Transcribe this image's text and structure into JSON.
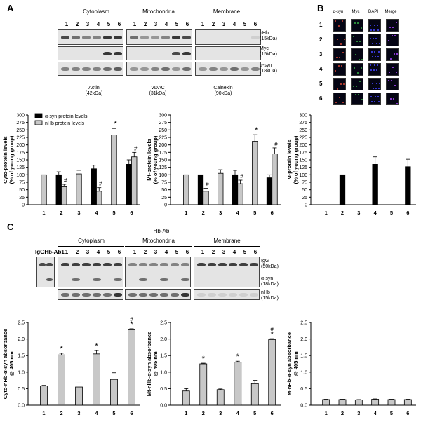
{
  "panelA": {
    "label": "A",
    "compartments": [
      "Cytoplasm",
      "Mitochondria",
      "Membrane"
    ],
    "lanes": [
      "1",
      "2",
      "3",
      "4",
      "5",
      "6"
    ],
    "band_labels": [
      "nHb\n(15kDa)",
      "Myc\n(15kDa)",
      "α-syn\n(18kDa)"
    ],
    "loading_controls": [
      "Actin\n(42kDa)",
      "VDAC\n(31kDa)",
      "Calnexin\n(90kDa)"
    ]
  },
  "panelB": {
    "label": "B",
    "columns": [
      "α-syn",
      "Myc",
      "DAPI",
      "Merge"
    ],
    "rows": [
      "1",
      "2",
      "3",
      "4",
      "5",
      "6"
    ]
  },
  "panelC": {
    "label": "C",
    "title": "Hb-Ab",
    "compartments": [
      "Cytoplasm",
      "Mitochondria",
      "Membrane"
    ],
    "lanes": [
      "1",
      "2",
      "3",
      "4",
      "5",
      "6"
    ],
    "side_lanes": "IgGHb-Ab1",
    "band_labels": [
      "IgG\n(50kDa)",
      "α-syn\n(18kDa)",
      "nHb\n(15kDa)"
    ]
  },
  "chart_data": [
    {
      "type": "bar",
      "id": "A1",
      "ylabel": "Cyto-protein levels\n(% of young group)",
      "ylim": [
        0,
        300
      ],
      "yticks": [
        0,
        25,
        50,
        75,
        100,
        125,
        150,
        175,
        200,
        225,
        250,
        275,
        300
      ],
      "categories": [
        "1",
        "2",
        "3",
        "4",
        "5",
        "6"
      ],
      "legend": [
        "α-syn protein levels",
        "nHb protein levels"
      ],
      "series": [
        {
          "name": "α-syn protein levels",
          "color": "#000000",
          "values": [
            null,
            100,
            null,
            120,
            null,
            135
          ],
          "err": [
            0,
            10,
            0,
            12,
            0,
            15
          ]
        },
        {
          "name": "nHb protein levels",
          "color": "#c8c8c8",
          "values": [
            100,
            60,
            103,
            45,
            233,
            160
          ],
          "err": [
            0,
            8,
            12,
            12,
            22,
            15
          ]
        }
      ],
      "annotations": [
        {
          "cat": 1,
          "series": 1,
          "text": "#"
        },
        {
          "cat": 3,
          "series": 1,
          "text": "#"
        },
        {
          "cat": 4,
          "series": 1,
          "text": "*"
        },
        {
          "cat": 5,
          "series": 1,
          "text": "#"
        }
      ]
    },
    {
      "type": "bar",
      "id": "A2",
      "ylabel": "Mt-protein levels\n(% of young group)",
      "ylim": [
        0,
        300
      ],
      "yticks": [
        0,
        25,
        50,
        75,
        100,
        125,
        150,
        175,
        200,
        225,
        250,
        275,
        300
      ],
      "categories": [
        "1",
        "2",
        "3",
        "4",
        "5",
        "6"
      ],
      "series": [
        {
          "name": "α-syn",
          "color": "#000000",
          "values": [
            null,
            100,
            null,
            100,
            null,
            90
          ],
          "err": [
            0,
            0,
            0,
            15,
            0,
            10
          ]
        },
        {
          "name": "nHb",
          "color": "#c8c8c8",
          "values": [
            100,
            45,
            105,
            70,
            212,
            170
          ],
          "err": [
            0,
            10,
            12,
            12,
            22,
            20
          ]
        }
      ],
      "annotations": [
        {
          "cat": 1,
          "series": 1,
          "text": "#"
        },
        {
          "cat": 3,
          "series": 1,
          "text": "#"
        },
        {
          "cat": 4,
          "series": 1,
          "text": "*"
        },
        {
          "cat": 5,
          "series": 1,
          "text": "#"
        }
      ]
    },
    {
      "type": "bar",
      "id": "A3",
      "ylabel": "M-protein levels\n(% of young group)",
      "ylim": [
        0,
        300
      ],
      "yticks": [
        0,
        25,
        50,
        75,
        100,
        125,
        150,
        175,
        200,
        225,
        250,
        275,
        300
      ],
      "categories": [
        "1",
        "2",
        "3",
        "4",
        "5",
        "6"
      ],
      "series": [
        {
          "name": "α-syn",
          "color": "#000000",
          "values": [
            null,
            100,
            null,
            135,
            null,
            127
          ],
          "err": [
            0,
            0,
            0,
            25,
            0,
            25
          ]
        },
        {
          "name": "nHb",
          "color": "#c8c8c8",
          "values": [
            null,
            null,
            null,
            null,
            null,
            null
          ],
          "err": [
            0,
            0,
            0,
            0,
            0,
            0
          ]
        }
      ],
      "annotations": []
    },
    {
      "type": "bar",
      "id": "C1",
      "ylabel": "Cyto-nHb-α-syn absorbance\n@ 405 nm",
      "ylim": [
        0,
        2.5
      ],
      "yticks": [
        0,
        0.5,
        1.0,
        1.5,
        2.0,
        2.5
      ],
      "ytickfmt": 1,
      "categories": [
        "1",
        "2",
        "3",
        "4",
        "5",
        "6"
      ],
      "series": [
        {
          "name": "absorbance",
          "color": "#c8c8c8",
          "values": [
            0.58,
            1.52,
            0.55,
            1.55,
            0.78,
            2.28
          ],
          "err": [
            0.02,
            0.05,
            0.12,
            0.1,
            0.2,
            0.03
          ]
        }
      ],
      "annotations": [
        {
          "cat": 1,
          "series": 0,
          "text": "*"
        },
        {
          "cat": 3,
          "series": 0,
          "text": "*"
        },
        {
          "cat": 5,
          "series": 0,
          "text": "#\n*"
        }
      ]
    },
    {
      "type": "bar",
      "id": "C2",
      "ylabel": "Mt-nHb-α-syn absorbance\n@ 405 nm",
      "ylim": [
        0,
        2.5
      ],
      "yticks": [
        0,
        0.5,
        1.0,
        1.5,
        2.0,
        2.5
      ],
      "ytickfmt": 1,
      "categories": [
        "1",
        "2",
        "3",
        "4",
        "5",
        "6"
      ],
      "series": [
        {
          "name": "absorbance",
          "color": "#c8c8c8",
          "values": [
            0.43,
            1.25,
            0.47,
            1.3,
            0.65,
            1.98
          ],
          "err": [
            0.07,
            0.02,
            0.02,
            0.03,
            0.1,
            0.03
          ]
        }
      ],
      "annotations": [
        {
          "cat": 1,
          "series": 0,
          "text": "*"
        },
        {
          "cat": 3,
          "series": 0,
          "text": "*"
        },
        {
          "cat": 5,
          "series": 0,
          "text": "#\n*"
        }
      ]
    },
    {
      "type": "bar",
      "id": "C3",
      "ylabel": "M-nHb-α-syn absorbance\n@ 405 nm",
      "ylim": [
        0,
        2.5
      ],
      "yticks": [
        0,
        0.5,
        1.0,
        1.5,
        2.0,
        2.5
      ],
      "ytickfmt": 1,
      "categories": [
        "1",
        "2",
        "3",
        "4",
        "5",
        "6"
      ],
      "series": [
        {
          "name": "absorbance",
          "color": "#c8c8c8",
          "values": [
            0.17,
            0.17,
            0.16,
            0.18,
            0.17,
            0.17
          ],
          "err": [
            0.01,
            0.01,
            0.01,
            0.01,
            0.01,
            0.01
          ]
        }
      ],
      "annotations": []
    }
  ]
}
